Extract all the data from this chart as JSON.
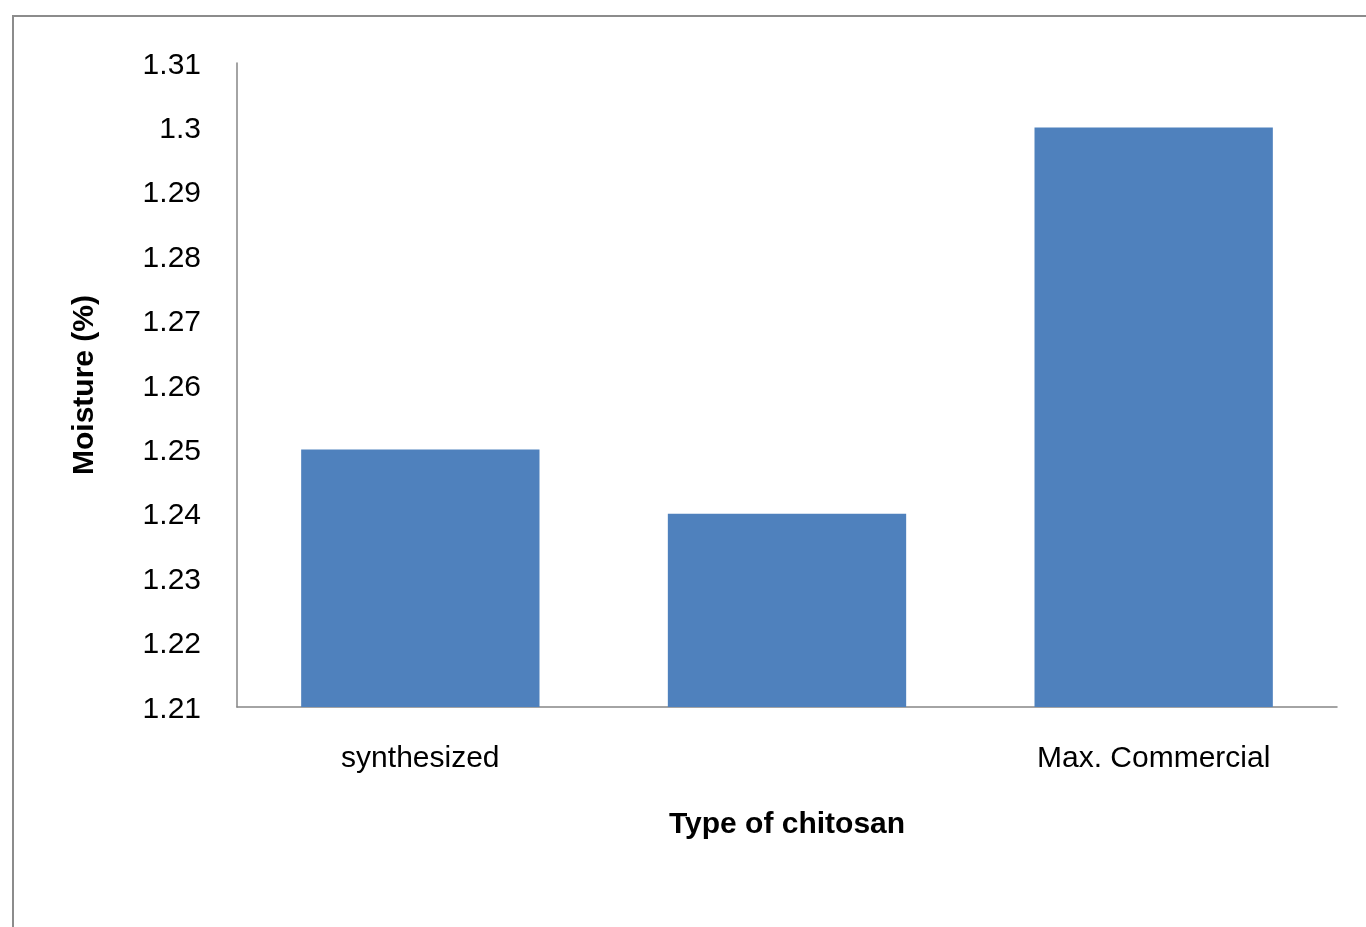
{
  "chart_data": {
    "type": "bar",
    "xlabel": "Type of chitosan",
    "ylabel": "Moisture (%)",
    "categories": [
      "synthesized",
      null,
      "Max. Commercial"
    ],
    "values": [
      1.25,
      1.24,
      1.3
    ],
    "color": "#4f81bd",
    "ylim": [
      1.21,
      1.31
    ],
    "yticks": [
      1.21,
      1.22,
      1.23,
      1.24,
      1.25,
      1.26,
      1.27,
      1.28,
      1.29,
      1.3,
      1.31
    ],
    "grid": false
  }
}
